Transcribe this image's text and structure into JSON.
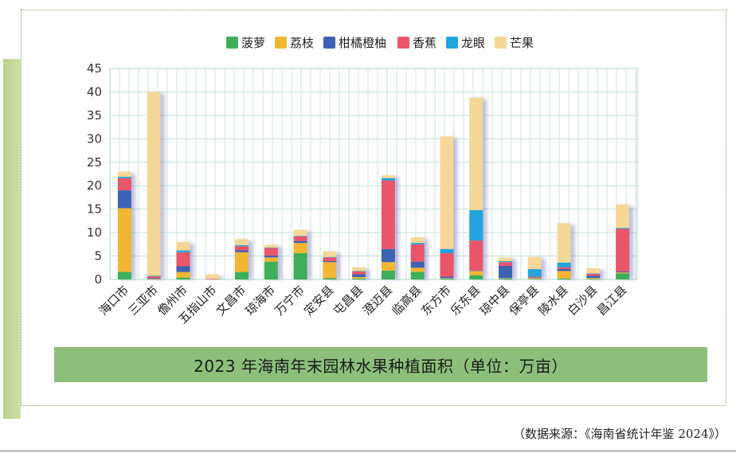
{
  "chart_data": {
    "type": "bar",
    "stacked": true,
    "title": "2023 年海南年末园林水果种植面积（单位：万亩）",
    "source": "（数据来源：《海南省统计年鉴 2024》）",
    "ylim": [
      0,
      45
    ],
    "yticks": [
      0,
      5,
      10,
      15,
      20,
      25,
      30,
      35,
      40,
      45
    ],
    "legend_position": "top",
    "categories": [
      "海口市",
      "三亚市",
      "儋州市",
      "五指山市",
      "文昌市",
      "琼海市",
      "万宁市",
      "定安县",
      "屯昌县",
      "澄迈县",
      "临高县",
      "东方市",
      "乐东县",
      "琼中县",
      "保亭县",
      "陵水县",
      "白沙县",
      "昌江县"
    ],
    "series": [
      {
        "name": "菠萝",
        "color": "#3fae5a",
        "values": [
          1.6,
          0.0,
          0.4,
          0.0,
          1.6,
          3.8,
          5.6,
          0.3,
          0.2,
          1.9,
          1.6,
          0.2,
          0.9,
          0.2,
          0.1,
          0.2,
          0.1,
          1.3
        ]
      },
      {
        "name": "荔枝",
        "color": "#f2b632",
        "values": [
          13.6,
          0.1,
          1.2,
          0.0,
          4.2,
          0.9,
          2.2,
          3.4,
          0.3,
          1.8,
          0.9,
          0.1,
          0.9,
          0.1,
          0.2,
          1.6,
          0.2,
          0.2
        ]
      },
      {
        "name": "柑橘橙柚",
        "color": "#3e62b4",
        "values": [
          3.8,
          0.2,
          1.2,
          0.0,
          0.4,
          0.4,
          0.4,
          0.2,
          0.6,
          2.8,
          1.3,
          0.3,
          0.1,
          2.6,
          0.1,
          0.4,
          0.5,
          0.2
        ]
      },
      {
        "name": "香蕉",
        "color": "#e9566a",
        "values": [
          2.6,
          0.4,
          3.0,
          0.1,
          0.9,
          1.6,
          1.0,
          0.8,
          0.6,
          14.6,
          3.7,
          5.0,
          6.4,
          0.8,
          0.2,
          0.4,
          0.4,
          9.1
        ]
      },
      {
        "name": "龙眼",
        "color": "#23a4dc",
        "values": [
          0.3,
          0.1,
          0.4,
          0.0,
          0.2,
          0.1,
          0.1,
          0.1,
          0.1,
          0.5,
          0.3,
          0.9,
          6.5,
          0.2,
          1.6,
          1.0,
          0.1,
          0.2
        ]
      },
      {
        "name": "芒果",
        "color": "#f5d797",
        "values": [
          1.1,
          39.2,
          1.8,
          1.0,
          1.3,
          0.6,
          1.3,
          1.2,
          0.8,
          0.6,
          1.2,
          24.0,
          24.0,
          0.8,
          2.6,
          8.4,
          1.1,
          5.0
        ]
      }
    ]
  }
}
